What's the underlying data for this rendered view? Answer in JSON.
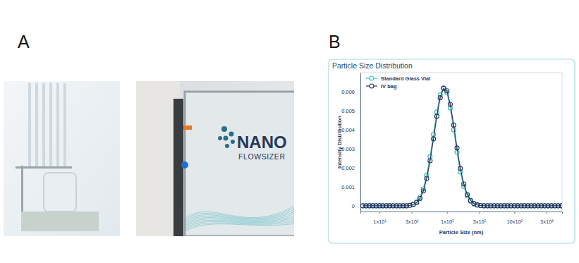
{
  "panels": [
    {
      "label": "A",
      "photo_text": [
        "NANO",
        "FLOWSIZER"
      ]
    },
    {
      "label": "B"
    }
  ],
  "chart_data": {
    "type": "line",
    "title": "Particle Size Distribution",
    "x_label": "Particle Size (nm)",
    "y_label": "Intensity Distribution",
    "log": "x",
    "legend": "top-left",
    "x": [
      5.62,
      6.31,
      7.08,
      7.94,
      8.91,
      10,
      11.2,
      12.6,
      14.1,
      15.8,
      17.8,
      20.0,
      22.4,
      25.1,
      28.2,
      31.6,
      35.5,
      39.8,
      44.7,
      50.1,
      56.2,
      63.1,
      70.8,
      79.4,
      89.1,
      100,
      112,
      126,
      141,
      158,
      178,
      200,
      224,
      251,
      282,
      316,
      355,
      398,
      447,
      501,
      562,
      631,
      708,
      794,
      891,
      1000,
      1122,
      1259,
      1413,
      1585,
      1778,
      1995,
      2239,
      2512,
      2818,
      3162,
      3548,
      3981,
      4467,
      5012
    ],
    "series": [
      {
        "name": "Standard Glass Vial",
        "color": "#3bbdb6",
        "marker": "circle",
        "values": [
          0,
          0,
          0,
          0,
          0,
          0,
          0,
          0,
          0,
          0,
          0,
          0,
          0,
          0,
          3.1e-05,
          8.3e-05,
          0.000204,
          0.00045,
          0.000895,
          0.001603,
          0.002585,
          0.00376,
          0.004929,
          0.005822,
          0.006197,
          0.005944,
          0.005139,
          0.004003,
          0.00281,
          0.001778,
          0.001014,
          0.000521,
          0.000241,
          0.000101,
          3.8e-05,
          1.3e-05,
          0,
          0,
          0,
          0,
          0,
          0,
          0,
          0,
          0,
          0,
          0,
          0,
          0,
          0,
          0,
          0,
          0,
          0,
          0,
          0,
          0,
          0,
          0,
          0
        ]
      },
      {
        "name": "IV bag",
        "color": "#27325e",
        "marker": "circle",
        "values": [
          0,
          0,
          0,
          0,
          0,
          0,
          0,
          0,
          0,
          0,
          0,
          0,
          0,
          0,
          2.5e-05,
          6.9e-05,
          0.000172,
          0.000388,
          0.000786,
          0.001439,
          0.00237,
          0.003521,
          0.004707,
          0.005679,
          0.006171,
          0.006044,
          0.005334,
          0.004243,
          0.003041,
          0.001966,
          0.001144,
          0.0006,
          0.000284,
          0.000121,
          4.6e-05,
          1.6e-05,
          0,
          0,
          0,
          0,
          0,
          0,
          0,
          0,
          0,
          0,
          0,
          0,
          0,
          0,
          0,
          0,
          0,
          0,
          0,
          0,
          0,
          0,
          0,
          0
        ]
      }
    ],
    "xlim": [
      5.2,
      5100
    ],
    "ylim": [
      -0.0003,
      0.007
    ],
    "xticks": [
      {
        "value": 10,
        "label": "1x10¹"
      },
      {
        "value": 30,
        "label": "3x10¹"
      },
      {
        "value": 100,
        "label": "1x10²"
      },
      {
        "value": 300,
        "label": "3x10²"
      },
      {
        "value": 1000,
        "label": "10x10²"
      },
      {
        "value": 3000,
        "label": "3x10³"
      }
    ],
    "yticks": [
      0,
      0.001,
      0.002,
      0.003,
      0.004,
      0.005,
      0.006
    ]
  }
}
